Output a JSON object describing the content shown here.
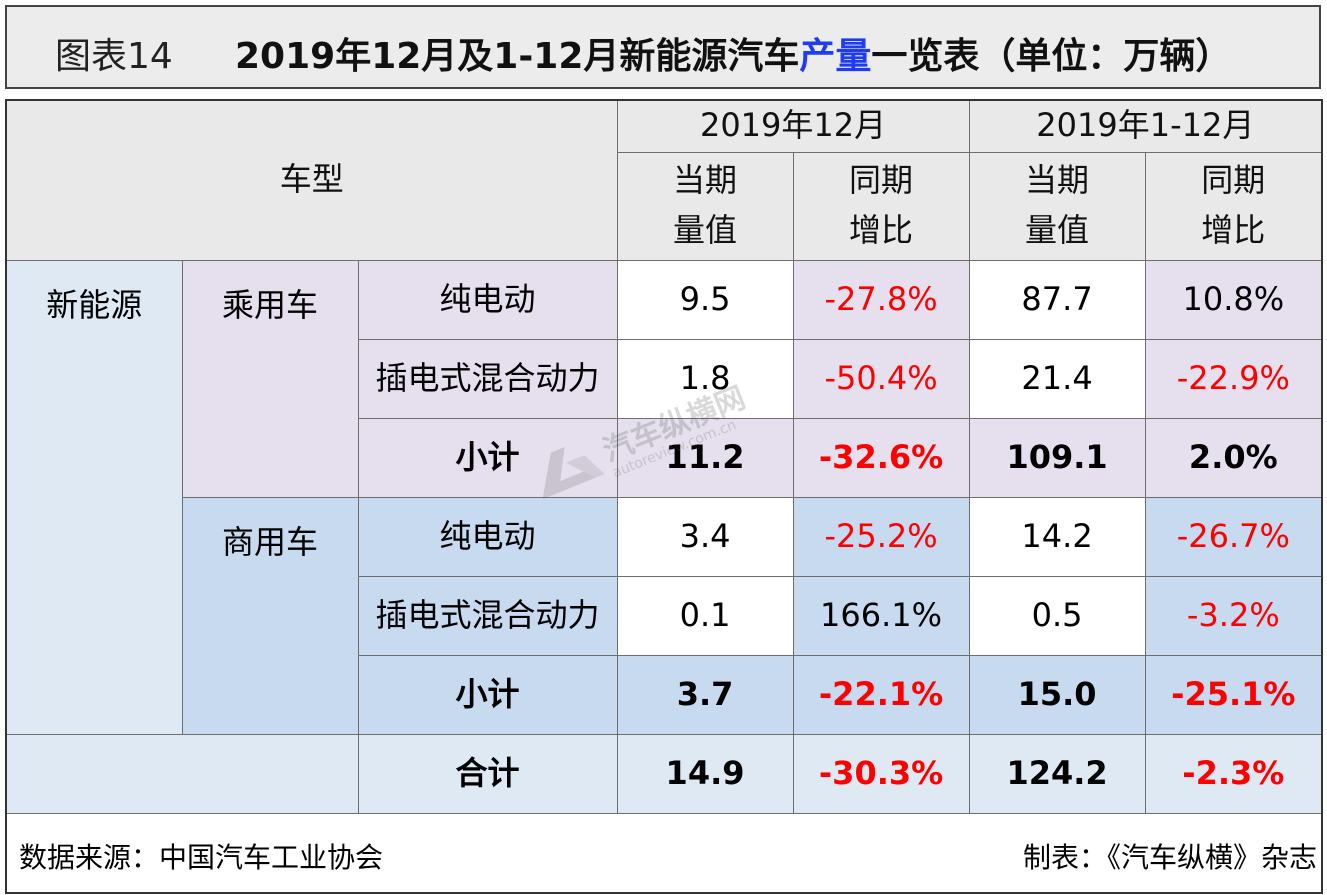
{
  "title": {
    "label": "图表14",
    "text_pre": "2019年12月及1-12月新能源汽车",
    "text_highlight": "产量",
    "text_post": "一览表（单位：万辆）"
  },
  "header": {
    "vehicle_type": "车型",
    "period_month": "2019年12月",
    "period_ytd": "2019年1-12月",
    "current_value_line1": "当期",
    "current_value_line2": "量值",
    "yoy_line1": "同期",
    "yoy_line2": "增比"
  },
  "categories": {
    "nev": "新能源",
    "passenger": "乘用车",
    "commercial": "商用车",
    "bev": "纯电动",
    "phev": "插电式混合动力",
    "subtotal": "小计",
    "total": "合计"
  },
  "rows": {
    "passenger_bev": {
      "month_value": "9.5",
      "month_yoy": "-27.8%",
      "ytd_value": "87.7",
      "ytd_yoy": "10.8%"
    },
    "passenger_phev": {
      "month_value": "1.8",
      "month_yoy": "-50.4%",
      "ytd_value": "21.4",
      "ytd_yoy": "-22.9%"
    },
    "passenger_subtotal": {
      "month_value": "11.2",
      "month_yoy": "-32.6%",
      "ytd_value": "109.1",
      "ytd_yoy": "2.0%"
    },
    "commercial_bev": {
      "month_value": "3.4",
      "month_yoy": "-25.2%",
      "ytd_value": "14.2",
      "ytd_yoy": "-26.7%"
    },
    "commercial_phev": {
      "month_value": "0.1",
      "month_yoy": "166.1%",
      "ytd_value": "0.5",
      "ytd_yoy": "-3.2%"
    },
    "commercial_subtotal": {
      "month_value": "3.7",
      "month_yoy": "-22.1%",
      "ytd_value": "15.0",
      "ytd_yoy": "-25.1%"
    },
    "total": {
      "month_value": "14.9",
      "month_yoy": "-30.3%",
      "ytd_value": "124.2",
      "ytd_yoy": "-2.3%"
    }
  },
  "footer": {
    "source": "数据来源：中国汽车工业协会",
    "made_by": "制表：《汽车纵横》杂志"
  },
  "watermark": {
    "text": "汽车纵横网",
    "url": "autoreview.com.cn"
  },
  "colors": {
    "title_highlight": "#1f3cf0",
    "negative": "#ff0000",
    "purple_cell": "#e6e0ee",
    "blue_cell": "#c8daf0",
    "category_cell": "#dfe9f3",
    "header_cell": "#e9e9e9"
  }
}
